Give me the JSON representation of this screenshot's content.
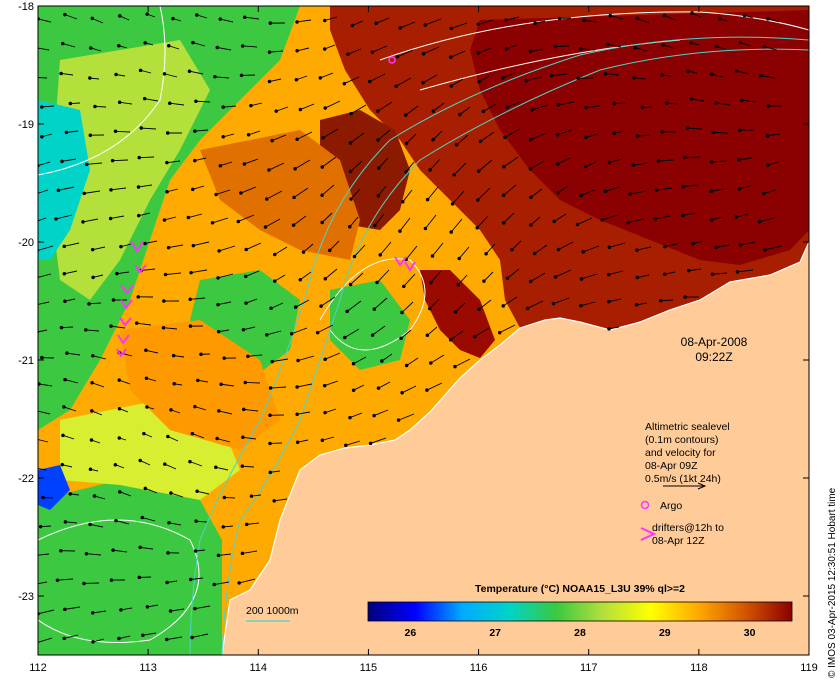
{
  "map": {
    "lon_range": [
      112,
      119
    ],
    "lat_range": [
      -23.5,
      -18
    ],
    "lon_ticks": [
      "112",
      "113",
      "114",
      "115",
      "116",
      "117",
      "118",
      "119"
    ],
    "lat_ticks": [
      "-18",
      "-19",
      "-20",
      "-21",
      "-22",
      "-23"
    ],
    "land_color": "#ffcc99",
    "sst_palette": [
      "#00007f",
      "#0000ff",
      "#00aaff",
      "#00d4c8",
      "#3cc840",
      "#b4e03c",
      "#ffff00",
      "#ffaa00",
      "#d45500",
      "#8b0000"
    ]
  },
  "datetime": {
    "date": "08-Apr-2008",
    "time": "09:22Z"
  },
  "legend": {
    "line1": "Altimetric sealevel",
    "line2": "(0.1m contours)",
    "line3": "and velocity for",
    "line4": "08-Apr 09Z",
    "line5": "0.5m/s (1kt 24h)",
    "argo_label": "Argo",
    "drifters_line1": "drifters@12h to",
    "drifters_line2": "08-Apr 12Z"
  },
  "isobath_label": "200  1000m",
  "colorbar": {
    "title": "Temperature (°C) NOAA15_L3U 39% ql>=2",
    "min": 25.5,
    "max": 30.5,
    "tick_values": [
      26,
      27,
      28,
      29,
      30
    ],
    "tick_labels": [
      "26",
      "27",
      "28",
      "29",
      "30"
    ]
  },
  "credit": "© IMOS 03-Apr-2015 12:30:51 Hobart time"
}
